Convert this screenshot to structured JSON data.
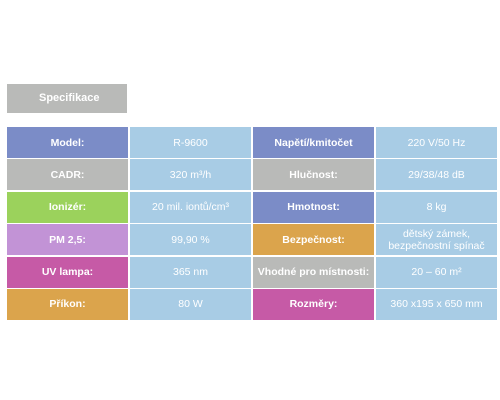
{
  "title": "Specifikace",
  "rows": [
    {
      "l1": "Model:",
      "v1": "R-9600",
      "l2": "Napětí/kmitočet",
      "v2": "220 V/50 Hz"
    },
    {
      "l1": "CADR:",
      "v1": "320 m³/h",
      "l2": "Hlučnost:",
      "v2": "29/38/48 dB"
    },
    {
      "l1": "Ionizér:",
      "v1": "20 mil. iontů/cm³",
      "l2": "Hmotnost:",
      "v2": "8 kg"
    },
    {
      "l1": "PM 2,5:",
      "v1": "99,90 %",
      "l2": "Bezpečnost:",
      "v2a": "dětský zámek,",
      "v2b": "bezpečnostní spínač"
    },
    {
      "l1": "UV lampa:",
      "v1": "365 nm",
      "l2": "Vhodné pro místnosti:",
      "v2": "20 – 60 m²"
    },
    {
      "l1": "Příkon:",
      "v1": "80 W",
      "l2": "Rozměry:",
      "v2": "360 x195 x 650 mm"
    }
  ],
  "colors": {
    "blue": "#7b8cc7",
    "grey": "#b9bab8",
    "green": "#9bd25c",
    "lilac": "#c293d6",
    "magenta": "#c65aa6",
    "orange": "#dba44c",
    "value_bg": "#a8cce5"
  }
}
